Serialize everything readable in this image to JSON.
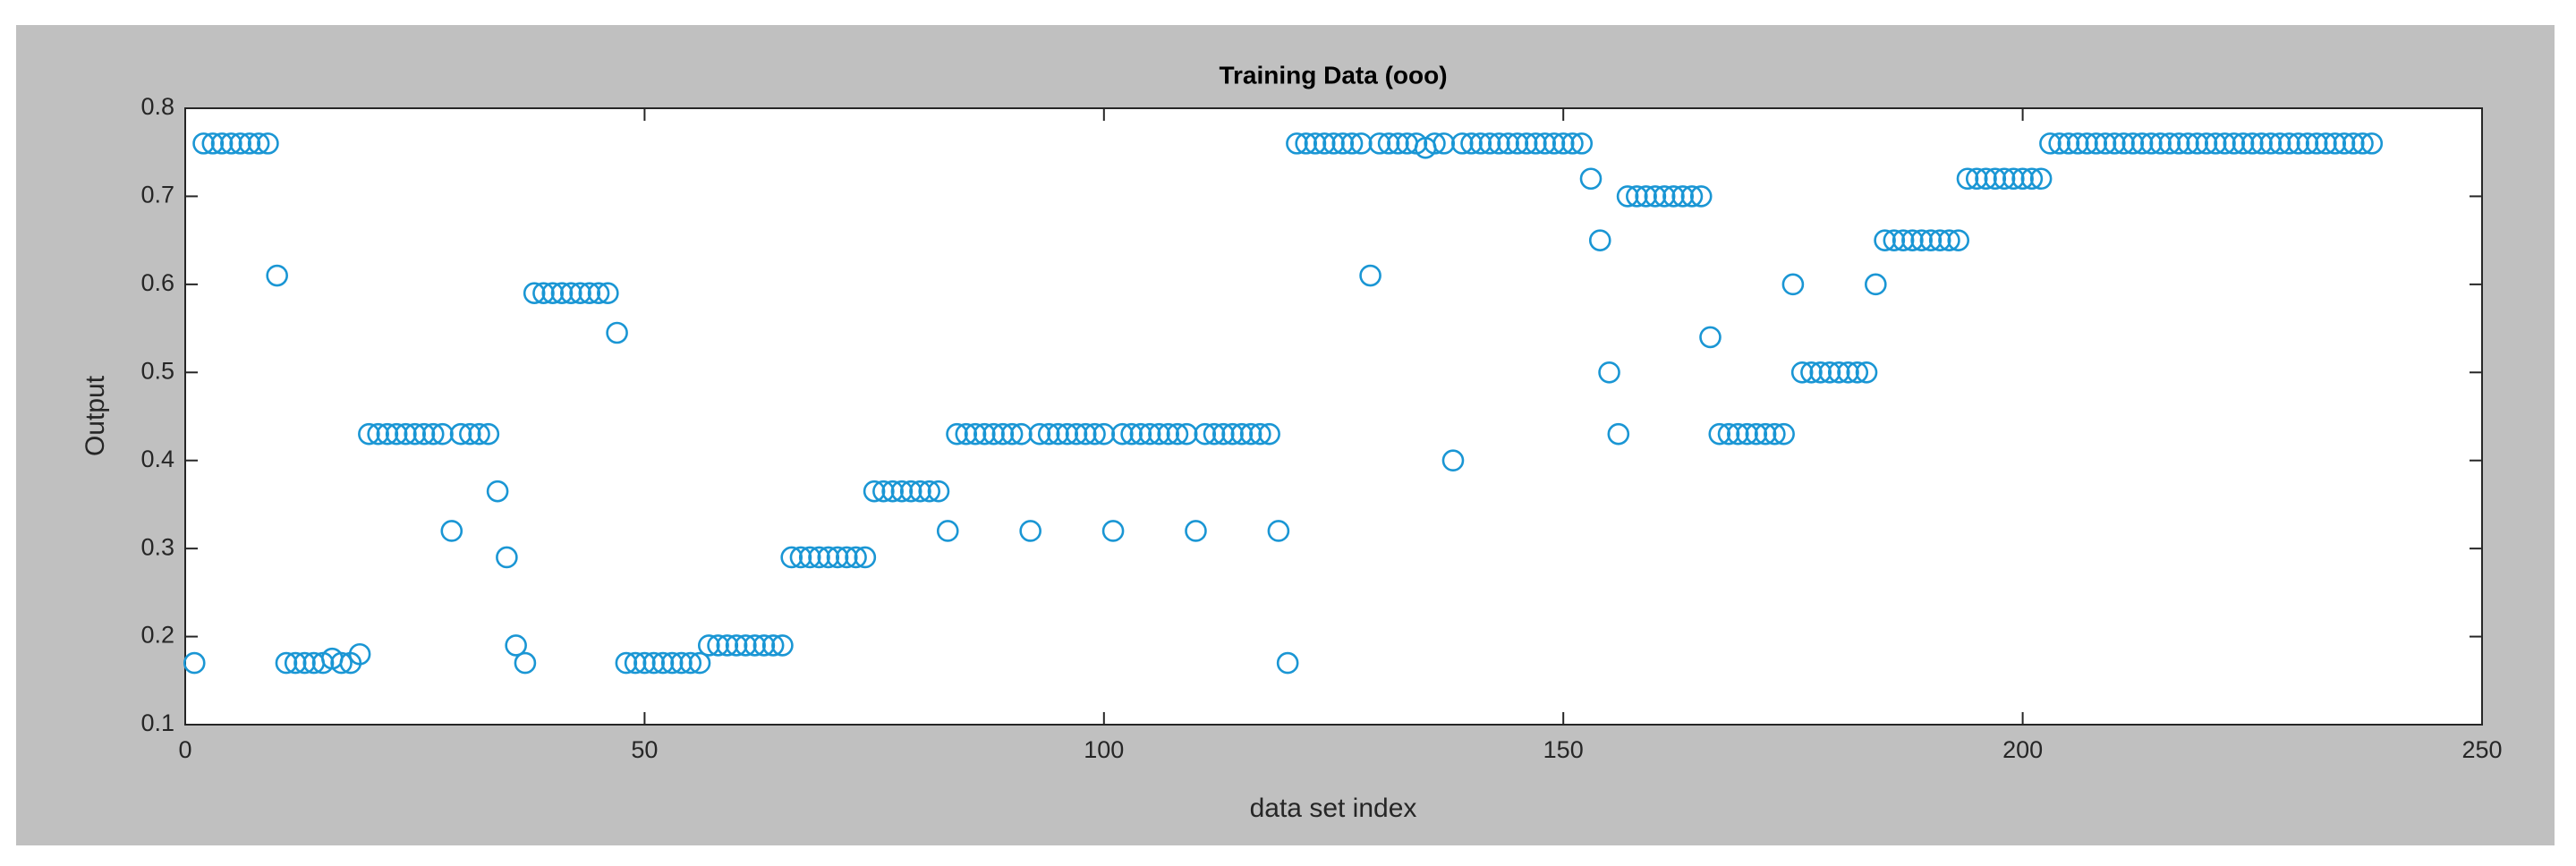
{
  "chart_data": {
    "type": "scatter",
    "title": "Training Data (ooo)",
    "xlabel": "data set index",
    "ylabel": "Output",
    "color": "#1a96d4",
    "xlim": [
      0,
      250
    ],
    "xticks": [
      0,
      50,
      100,
      150,
      200,
      250
    ],
    "ylim": [
      0.1,
      0.8
    ],
    "yticks": [
      0.1,
      0.2,
      0.3,
      0.4,
      0.5,
      0.6,
      0.7,
      0.8
    ],
    "x": [
      1,
      2,
      3,
      4,
      5,
      6,
      7,
      8,
      9,
      10,
      11,
      12,
      13,
      14,
      15,
      16,
      17,
      18,
      19,
      20,
      21,
      22,
      23,
      24,
      25,
      26,
      27,
      28,
      29,
      30,
      31,
      32,
      33,
      34,
      35,
      36,
      37,
      38,
      39,
      40,
      41,
      42,
      43,
      44,
      45,
      46,
      47,
      48,
      49,
      50,
      51,
      52,
      53,
      54,
      55,
      56,
      57,
      58,
      59,
      60,
      61,
      62,
      63,
      64,
      65,
      66,
      67,
      68,
      69,
      70,
      71,
      72,
      73,
      74,
      75,
      76,
      77,
      78,
      79,
      80,
      81,
      82,
      83,
      84,
      85,
      86,
      87,
      88,
      89,
      90,
      91,
      92,
      93,
      94,
      95,
      96,
      97,
      98,
      99,
      100,
      101,
      102,
      103,
      104,
      105,
      106,
      107,
      108,
      109,
      110,
      111,
      112,
      113,
      114,
      115,
      116,
      117,
      118,
      119,
      120,
      121,
      122,
      123,
      124,
      125,
      126,
      127,
      128,
      129,
      130,
      131,
      132,
      133,
      134,
      135,
      136,
      137,
      138,
      139,
      140,
      141,
      142,
      143,
      144,
      145,
      146,
      147,
      148,
      149,
      150,
      151,
      152,
      153,
      154,
      155,
      156,
      157,
      158,
      159,
      160,
      161,
      162,
      163,
      164,
      165,
      166,
      167,
      168,
      169,
      170,
      171,
      172,
      173,
      174,
      175,
      176,
      177,
      178,
      179,
      180,
      181,
      182,
      183,
      184,
      185,
      186,
      187,
      188,
      189,
      190,
      191,
      192,
      193,
      194,
      195,
      196,
      197,
      198,
      199,
      200,
      201,
      202,
      203,
      204,
      205,
      206,
      207,
      208,
      209,
      210,
      211,
      212,
      213,
      214,
      215,
      216,
      217,
      218,
      219,
      220,
      221,
      222,
      223,
      224,
      225,
      226,
      227,
      228,
      229,
      230,
      231,
      232,
      233,
      234,
      235,
      236,
      237,
      238
    ],
    "values": [
      0.17,
      0.76,
      0.76,
      0.76,
      0.76,
      0.76,
      0.76,
      0.76,
      0.76,
      0.61,
      0.17,
      0.17,
      0.17,
      0.17,
      0.17,
      0.175,
      0.17,
      0.17,
      0.18,
      0.43,
      0.43,
      0.43,
      0.43,
      0.43,
      0.43,
      0.43,
      0.43,
      0.43,
      0.32,
      0.43,
      0.43,
      0.43,
      0.43,
      0.365,
      0.29,
      0.19,
      0.17,
      0.59,
      0.59,
      0.59,
      0.59,
      0.59,
      0.59,
      0.59,
      0.59,
      0.59,
      0.545,
      0.17,
      0.17,
      0.17,
      0.17,
      0.17,
      0.17,
      0.17,
      0.17,
      0.17,
      0.19,
      0.19,
      0.19,
      0.19,
      0.19,
      0.19,
      0.19,
      0.19,
      0.19,
      0.29,
      0.29,
      0.29,
      0.29,
      0.29,
      0.29,
      0.29,
      0.29,
      0.29,
      0.365,
      0.365,
      0.365,
      0.365,
      0.365,
      0.365,
      0.365,
      0.365,
      0.32,
      0.43,
      0.43,
      0.43,
      0.43,
      0.43,
      0.43,
      0.43,
      0.43,
      0.32,
      0.43,
      0.43,
      0.43,
      0.43,
      0.43,
      0.43,
      0.43,
      0.43,
      0.32,
      0.43,
      0.43,
      0.43,
      0.43,
      0.43,
      0.43,
      0.43,
      0.43,
      0.32,
      0.43,
      0.43,
      0.43,
      0.43,
      0.43,
      0.43,
      0.43,
      0.43,
      0.32,
      0.17,
      0.76,
      0.76,
      0.76,
      0.76,
      0.76,
      0.76,
      0.76,
      0.76,
      0.61,
      0.76,
      0.76,
      0.76,
      0.76,
      0.76,
      0.755,
      0.76,
      0.76,
      0.4,
      0.76,
      0.76,
      0.76,
      0.76,
      0.76,
      0.76,
      0.76,
      0.76,
      0.76,
      0.76,
      0.76,
      0.76,
      0.76,
      0.76,
      0.72,
      0.65,
      0.5,
      0.43,
      0.7,
      0.7,
      0.7,
      0.7,
      0.7,
      0.7,
      0.7,
      0.7,
      0.7,
      0.54,
      0.43,
      0.43,
      0.43,
      0.43,
      0.43,
      0.43,
      0.43,
      0.43,
      0.6,
      0.5,
      0.5,
      0.5,
      0.5,
      0.5,
      0.5,
      0.5,
      0.5,
      0.6,
      0.65,
      0.65,
      0.65,
      0.65,
      0.65,
      0.65,
      0.65,
      0.65,
      0.65,
      0.72,
      0.72,
      0.72,
      0.72,
      0.72,
      0.72,
      0.72,
      0.72,
      0.72,
      0.76,
      0.76,
      0.76,
      0.76,
      0.76,
      0.76,
      0.76,
      0.76,
      0.76,
      0.76,
      0.76,
      0.76,
      0.76,
      0.76,
      0.76,
      0.76,
      0.76,
      0.76,
      0.76,
      0.76,
      0.76,
      0.76,
      0.76,
      0.76,
      0.76,
      0.76,
      0.76,
      0.76,
      0.76,
      0.76,
      0.76,
      0.76,
      0.76,
      0.76,
      0.76,
      0.76
    ]
  }
}
